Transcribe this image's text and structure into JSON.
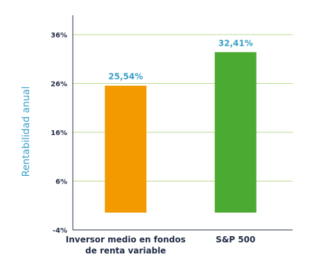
{
  "chart_data": {
    "type": "bar",
    "title": "",
    "xlabel": "",
    "ylabel": "Rentabilidad anual",
    "ylim": [
      -4,
      36
    ],
    "yticks": [
      -4,
      6,
      16,
      26,
      36
    ],
    "ytick_labels": [
      "-4%",
      "6%",
      "16%",
      "26%",
      "36%"
    ],
    "grid": true,
    "categories": [
      [
        "Inversor medio en fondos",
        "de renta variable"
      ],
      [
        "S&P 500"
      ]
    ],
    "values": [
      25.54,
      32.41
    ],
    "value_labels": [
      "25,54%",
      "32,41%"
    ],
    "colors": [
      "#f29a00",
      "#4aaa32"
    ],
    "label_color": "#3a9fc7",
    "ylabel_color": "#3a9fc7",
    "axis_color": "#1f2a44",
    "grid_color": "#b8d98c"
  }
}
